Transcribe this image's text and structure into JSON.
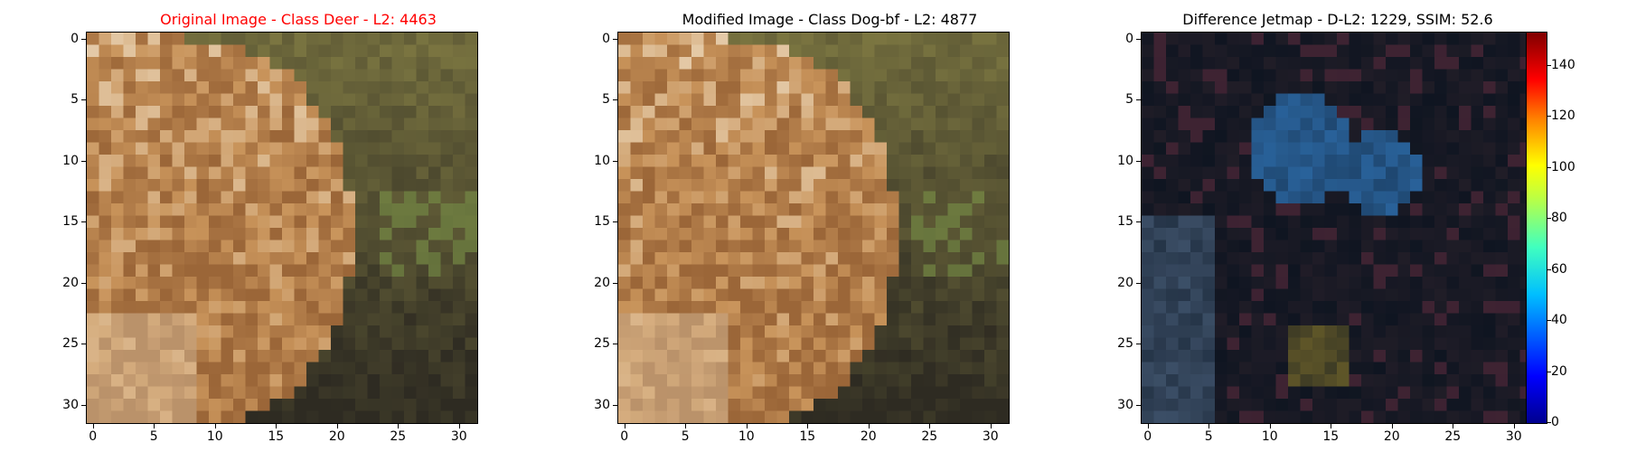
{
  "panels": [
    {
      "title": "Original Image - Class Deer - L2: 4463",
      "title_color": "#ff0000",
      "kind": "original"
    },
    {
      "title": "Modified Image - Class Dog-bf - L2: 4877",
      "title_color": "#000000",
      "kind": "modified"
    },
    {
      "title": "Difference Jetmap - D-L2: 1229, SSIM: 52.6",
      "title_color": "#000000",
      "kind": "difference"
    }
  ],
  "axis_ticks": [
    "0",
    "5",
    "10",
    "15",
    "20",
    "25",
    "30"
  ],
  "axis_tick_values": [
    0,
    5,
    10,
    15,
    20,
    25,
    30
  ],
  "image_grid_size": 32,
  "colorbar": {
    "colormap": "jet",
    "range": [
      0,
      153
    ],
    "ticks": [
      "0",
      "20",
      "40",
      "60",
      "80",
      "100",
      "120",
      "140"
    ],
    "tick_values": [
      0,
      20,
      40,
      60,
      80,
      100,
      120,
      140
    ]
  },
  "colors": {
    "background_dark": "#2e2b22",
    "fur_light": "#e9d3b4",
    "fur_mid": "#c8935a",
    "fur_dark": "#9b6638",
    "foliage": "#6f6a3c",
    "diff_base": "#0f1521",
    "diff_blue": "#2a6fb0"
  }
}
